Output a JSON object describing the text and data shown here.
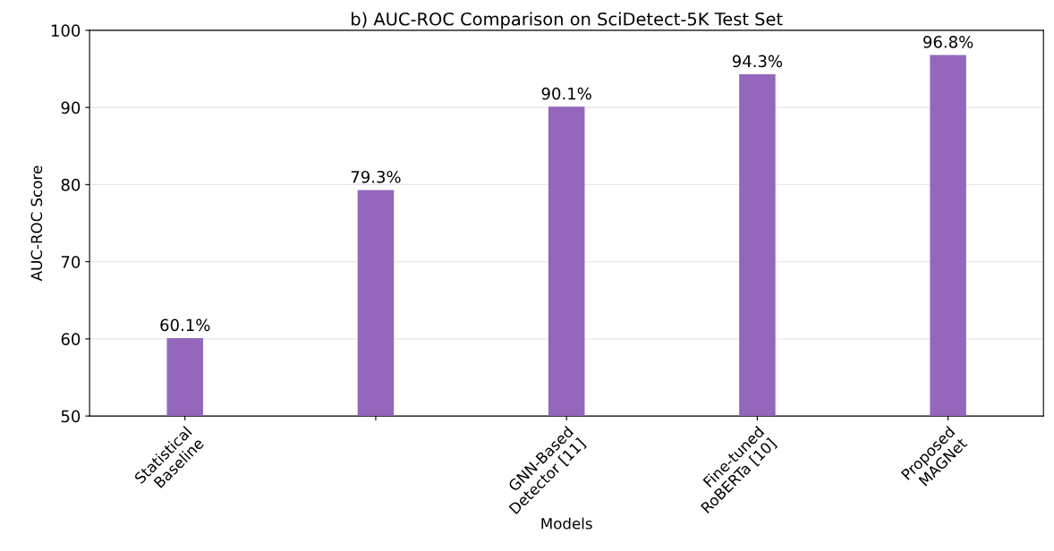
{
  "chart_data": {
    "type": "bar",
    "title": "b) AUC-ROC Comparison on SciDetect-5K Test Set",
    "xlabel": "Models",
    "ylabel": "AUC-ROC Score",
    "categories": [
      "Statistical\nBaseline",
      null,
      "GNN-Based\nDetector [11]",
      "Fine-tuned\nRoBERTa [10]",
      "Proposed\nMAGNet"
    ],
    "values": [
      60.1,
      79.3,
      90.1,
      94.3,
      96.8
    ],
    "value_labels": [
      "60.1%",
      "79.3%",
      "90.1%",
      "94.3%",
      "96.8%"
    ],
    "color": "#9467bd",
    "ylim": [
      50,
      100
    ],
    "yticks": [
      50,
      60,
      70,
      80,
      90,
      100
    ],
    "grid": "y"
  }
}
